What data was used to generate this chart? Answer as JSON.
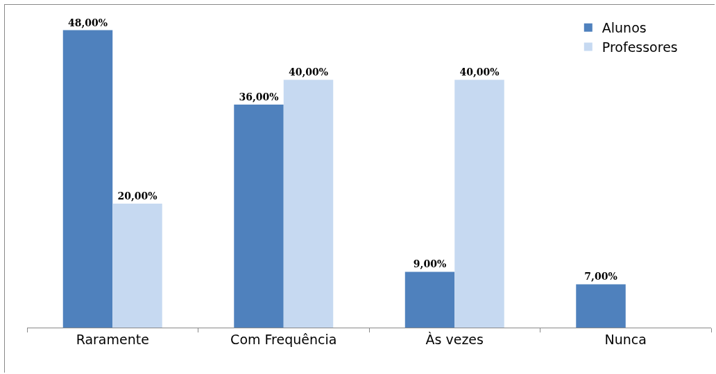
{
  "chart_data": {
    "type": "bar",
    "categories": [
      "Raramente",
      "Com Frequência",
      "Às vezes",
      "Nunca"
    ],
    "series": [
      {
        "name": "Alunos",
        "color": "#4f81bd",
        "values": [
          48,
          36,
          9,
          7
        ],
        "value_labels": [
          "48,00%",
          "36,00%",
          "9,00%",
          "7,00%"
        ]
      },
      {
        "name": "Professores",
        "color": "#c6d9f1",
        "values": [
          20,
          40,
          40,
          null
        ],
        "value_labels": [
          "20,00%",
          "40,00%",
          "40,00%",
          null
        ]
      }
    ],
    "tick_labels": "x",
    "grid": false,
    "legend": "top right"
  }
}
